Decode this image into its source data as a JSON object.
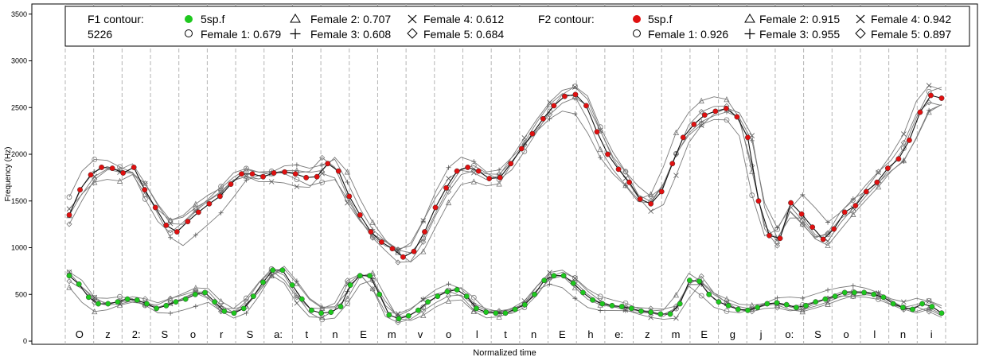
{
  "chart_data": {
    "type": "line",
    "title": "",
    "xlabel": "Normalized time",
    "ylabel": "Frequency (Hz)",
    "ylim": [
      0,
      3600
    ],
    "yticks": [
      0,
      500,
      1000,
      1500,
      2000,
      2500,
      3000,
      3500
    ],
    "grid": "vertical dashed lines at segment boundaries",
    "segments": [
      "O",
      "z",
      "2:",
      "S",
      "o",
      "r",
      "S",
      "a:",
      "t",
      "n",
      "E",
      "m",
      "v",
      "o",
      "l",
      "t",
      "n",
      "E",
      "h",
      "e:",
      "z",
      "m",
      "E",
      "g",
      "j",
      "o:",
      "S",
      "o",
      "l",
      "n",
      "i"
    ],
    "legend": {
      "placement": "top",
      "f1_title": "F1 contour:",
      "f1_speaker": "5226",
      "f1_items": [
        {
          "symbol": "filled-circle",
          "color": "#1ec81e",
          "label": "5sp.f"
        },
        {
          "symbol": "triangle",
          "label": "Female 2: 0.707"
        },
        {
          "symbol": "cross",
          "label": "Female 4: 0.612"
        },
        {
          "symbol": "circle",
          "label": "Female 1: 0.679"
        },
        {
          "symbol": "plus",
          "label": "Female 3: 0.608"
        },
        {
          "symbol": "diamond",
          "label": "Female 5: 0.684"
        }
      ],
      "f2_title": "F2 contour:",
      "f2_items": [
        {
          "symbol": "filled-circle",
          "color": "#e01010",
          "label": "5sp.f"
        },
        {
          "symbol": "triangle",
          "label": "Female 2: 0.915"
        },
        {
          "symbol": "cross",
          "label": "Female 4: 0.942"
        },
        {
          "symbol": "circle",
          "label": "Female 1: 0.926"
        },
        {
          "symbol": "plus",
          "label": "Female 3: 0.955"
        },
        {
          "symbol": "diamond",
          "label": "Female 5: 0.897"
        }
      ]
    },
    "series": [
      {
        "name": "F2 5sp.f",
        "color": "#e01010",
        "values": [
          1350,
          1620,
          1780,
          1860,
          1850,
          1800,
          1860,
          1620,
          1430,
          1240,
          1170,
          1280,
          1380,
          1470,
          1550,
          1680,
          1790,
          1790,
          1760,
          1800,
          1810,
          1790,
          1750,
          1760,
          1900,
          1820,
          1550,
          1350,
          1170,
          1060,
          990,
          900,
          960,
          1170,
          1430,
          1640,
          1820,
          1860,
          1820,
          1740,
          1750,
          1900,
          2060,
          2220,
          2380,
          2520,
          2620,
          2640,
          2520,
          2240,
          2000,
          1840,
          1700,
          1520,
          1470,
          1600,
          1900,
          2180,
          2320,
          2420,
          2460,
          2490,
          2400,
          2180,
          1500,
          1130,
          1100,
          1480,
          1360,
          1220,
          1090,
          1200,
          1380,
          1450,
          1600,
          1700,
          1850,
          1950,
          2150,
          2450,
          2630,
          2600
        ]
      },
      {
        "name": "F1 5sp.f",
        "color": "#1ec81e",
        "values": [
          700,
          610,
          470,
          400,
          400,
          420,
          450,
          440,
          400,
          350,
          380,
          420,
          450,
          500,
          520,
          420,
          320,
          300,
          350,
          480,
          630,
          760,
          760,
          600,
          450,
          330,
          300,
          310,
          370,
          600,
          700,
          700,
          500,
          280,
          240,
          270,
          330,
          420,
          480,
          530,
          550,
          480,
          350,
          310,
          300,
          300,
          340,
          390,
          500,
          650,
          700,
          700,
          620,
          520,
          440,
          400,
          380,
          370,
          350,
          320,
          310,
          290,
          290,
          400,
          650,
          640,
          500,
          420,
          380,
          340,
          330,
          360,
          400,
          410,
          390,
          360,
          380,
          420,
          450,
          480,
          520,
          520,
          520,
          500,
          470,
          400,
          360,
          340,
          400,
          370,
          300
        ]
      }
    ]
  }
}
